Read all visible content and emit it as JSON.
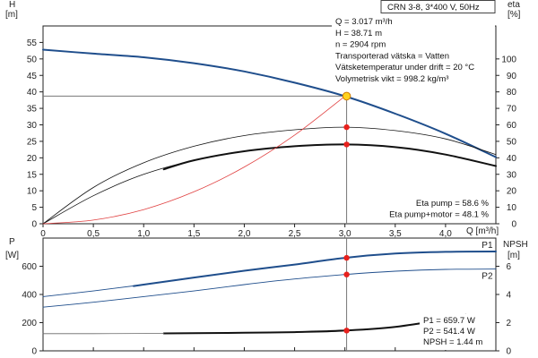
{
  "chart_data": [
    {
      "type": "line",
      "title": "CRN 3-8, 3*400 V, 50Hz",
      "xlabel": "Q [m³/h]",
      "ylabel": "H [m]",
      "ylabel_right": "eta [%]",
      "xlim": [
        0,
        4.5
      ],
      "ylim": [
        0,
        60
      ],
      "ylim_right": [
        0,
        120
      ],
      "x_ticks": [
        0,
        0.5,
        1.0,
        1.5,
        2.0,
        2.5,
        3.0,
        3.5,
        4.0
      ],
      "x_tick_labels": [
        "0",
        "0,5",
        "1,0",
        "1,5",
        "2,0",
        "2,5",
        "3,0",
        "3,5",
        "4,0"
      ],
      "y_ticks": [
        0,
        5,
        10,
        15,
        20,
        25,
        30,
        35,
        40,
        45,
        50,
        55
      ],
      "y_ticks_right": [
        0,
        10,
        20,
        30,
        40,
        50,
        60,
        70,
        80,
        90,
        100
      ],
      "grid": false,
      "series": [
        {
          "axis": "left",
          "color": "#1f4e8c",
          "width": 2,
          "x": [
            0,
            0.5,
            1.0,
            1.5,
            2.0,
            2.5,
            3.0,
            3.5,
            4.0,
            4.5
          ],
          "y": [
            52.8,
            51.6,
            50.5,
            48.7,
            46.2,
            42.8,
            38.7,
            33.4,
            27.3,
            20.2
          ]
        },
        {
          "axis": "right",
          "color": "#111111",
          "width": 0.8,
          "x": [
            0,
            0.5,
            1.0,
            1.5,
            2.0,
            2.5,
            3.0,
            3.5,
            4.0,
            4.5
          ],
          "y": [
            0,
            22,
            37,
            47,
            53.5,
            57,
            58.6,
            56.5,
            51.5,
            42
          ]
        },
        {
          "axis": "right",
          "color": "#111111",
          "width": 0.8,
          "x": [
            0,
            0.5,
            1.0,
            1.5,
            2.0,
            2.5,
            3.0,
            3.5,
            4.0,
            4.5
          ],
          "y": [
            0,
            17,
            30,
            38.5,
            44,
            47,
            48.1,
            46.5,
            42,
            35
          ]
        },
        {
          "axis": "right",
          "color": "#111111",
          "width": 2,
          "x": [
            1.2,
            1.5,
            2.0,
            2.5,
            3.0,
            3.5,
            4.0,
            4.5
          ],
          "y": [
            33,
            38.5,
            44,
            47,
            48.1,
            46.5,
            42,
            35
          ]
        },
        {
          "axis": "left",
          "color": "#e04040",
          "width": 0.8,
          "x": [
            0,
            0.5,
            1.0,
            1.5,
            2.0,
            2.5,
            3.0
          ],
          "y": [
            0,
            1.1,
            4.3,
            9.7,
            17.2,
            26.9,
            38.7
          ]
        }
      ],
      "duty_point": {
        "x": 3.017,
        "y": 38.71
      },
      "duty_markers_right": [
        58.6,
        48.1
      ],
      "info_lines": [
        "Q = 3.017 m³/h",
        "H = 38.71 m",
        "n = 2904 rpm",
        "Transporterad vätska = Vatten",
        "Vätsketemperatur under drift = 20 °C",
        "Volymetrisk vikt = 998.2 kg/m³"
      ],
      "eta_lines": [
        "Eta pump = 58.6 %",
        "Eta pump+motor = 48.1 %"
      ]
    },
    {
      "type": "line",
      "xlim": [
        0,
        4.5
      ],
      "ylim": [
        0,
        800
      ],
      "ylim_right": [
        0,
        8
      ],
      "ylabel": "P [W]",
      "ylabel_right": "NPSH [m]",
      "y_ticks": [
        0,
        200,
        400,
        600
      ],
      "y_ticks_right": [
        0,
        2,
        4,
        6
      ],
      "grid": false,
      "series": [
        {
          "name": "P1",
          "axis": "left",
          "color": "#1f4e8c",
          "width": 0.9,
          "x": [
            0,
            0.5,
            1.0,
            1.5,
            2.0,
            2.5,
            3.0,
            3.5,
            4.0,
            4.5
          ],
          "y": [
            385,
            425,
            470,
            520,
            568,
            612,
            659.7,
            690,
            702,
            705
          ]
        },
        {
          "name": "",
          "axis": "left",
          "color": "#1f4e8c",
          "width": 2,
          "x": [
            0.9,
            1.0,
            1.5,
            2.0,
            2.5,
            3.0,
            3.5,
            4.0,
            4.5
          ],
          "y": [
            460,
            470,
            520,
            568,
            612,
            659.7,
            690,
            702,
            705
          ]
        },
        {
          "name": "P2",
          "axis": "left",
          "color": "#1f4e8c",
          "width": 0.9,
          "x": [
            0,
            0.5,
            1.0,
            1.5,
            2.0,
            2.5,
            3.0,
            3.5,
            4.0,
            4.5
          ],
          "y": [
            310,
            345,
            385,
            425,
            470,
            510,
            541.4,
            565,
            578,
            580
          ]
        },
        {
          "name": "",
          "axis": "right",
          "color": "#111111",
          "width": 2,
          "x": [
            1.2,
            1.5,
            2.0,
            2.5,
            3.0,
            3.5,
            4.0,
            4.2
          ],
          "y": [
            1.24,
            1.25,
            1.28,
            1.33,
            1.44,
            1.7,
            2.25,
            2.55
          ]
        },
        {
          "name": "",
          "axis": "right",
          "color": "#666666",
          "width": 0.8,
          "x": [
            0,
            0.5,
            1.0,
            1.2
          ],
          "y": [
            1.22,
            1.22,
            1.23,
            1.24
          ]
        }
      ],
      "duty_markers": [
        {
          "axis": "left",
          "y": 659.7
        },
        {
          "axis": "left",
          "y": 541.4
        },
        {
          "axis": "right",
          "y": 1.44
        }
      ],
      "info_lines": [
        "P1 = 659.7 W",
        "P2 = 541.4 W",
        "NPSH = 1.44 m"
      ]
    }
  ],
  "labels": {
    "top_y_left": "H",
    "top_y_left_unit": "[m]",
    "top_y_right": "eta",
    "top_y_right_unit": "[%]",
    "x_axis": "Q [m³/h]",
    "bottom_y_left": "P",
    "bottom_y_left_unit": "[W]",
    "bottom_y_right": "NPSH",
    "bottom_y_right_unit": "[m]"
  },
  "colors": {
    "head": "#1f4e8c",
    "system": "#e04040",
    "marker": "#e8201c",
    "duty": "#ffd21f"
  }
}
